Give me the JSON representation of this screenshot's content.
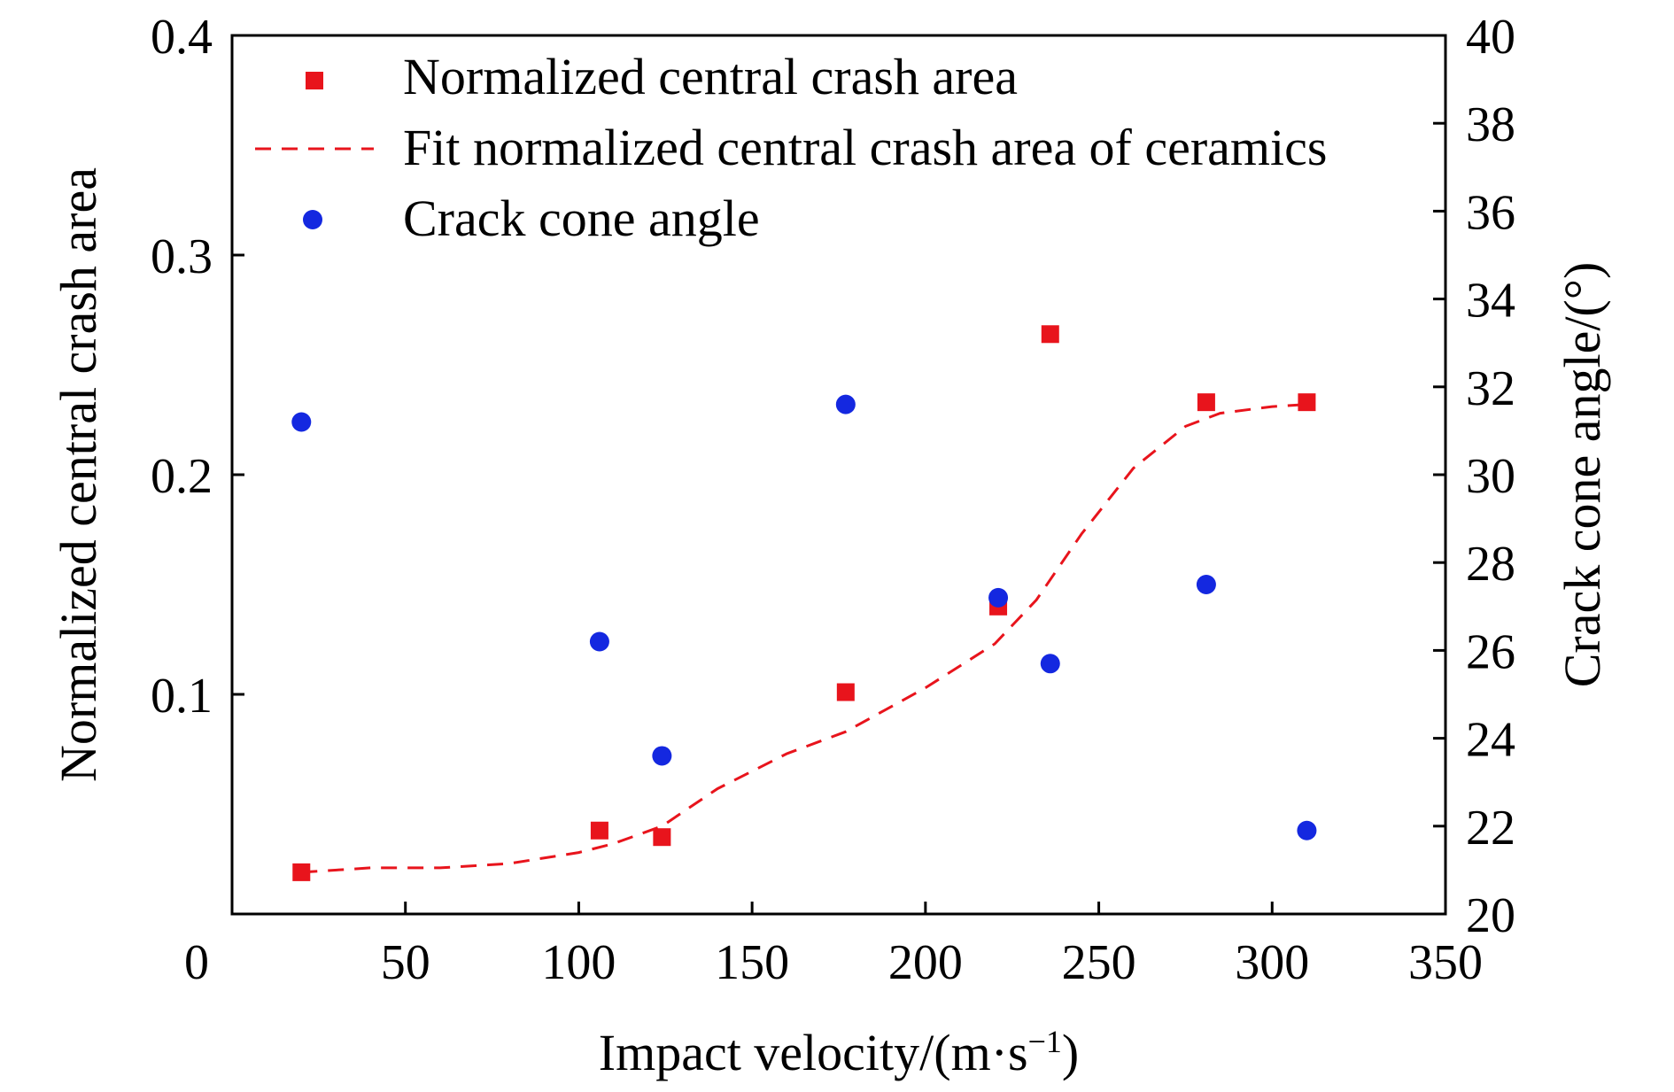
{
  "chart_data": {
    "type": "scatter",
    "xlabel": "Impact velocity/(m·s",
    "xlabel_sup": "−1",
    "xlabel_end": ")",
    "ylabel_left": "Normalized central crash area",
    "ylabel_right": "Crack cone angle/(°)",
    "xlim": [
      0,
      350
    ],
    "ylim_left": [
      0,
      0.4
    ],
    "ylim_right": [
      20,
      40
    ],
    "x_ticks": [
      0,
      50,
      100,
      150,
      200,
      250,
      300,
      350
    ],
    "x_tick_labels": [
      "0",
      "50",
      "100",
      "150",
      "200",
      "250",
      "300",
      "350"
    ],
    "y_left_ticks": [
      0.1,
      0.2,
      0.3,
      0.4
    ],
    "y_left_tick_labels": [
      "0.1",
      "0.2",
      "0.3",
      "0.4"
    ],
    "y_right_ticks": [
      20,
      22,
      24,
      26,
      28,
      30,
      32,
      34,
      36,
      38,
      40
    ],
    "y_right_tick_labels": [
      "20",
      "22",
      "24",
      "26",
      "28",
      "30",
      "32",
      "34",
      "36",
      "38",
      "40"
    ],
    "grid": false,
    "legend_position": "top-left",
    "series": [
      {
        "name": "Normalized central crash area",
        "kind": "scatter",
        "marker": "square",
        "axis": "left",
        "color": "#e8141c",
        "x": [
          20,
          106,
          124,
          177,
          221,
          236,
          281,
          310
        ],
        "y": [
          0.019,
          0.038,
          0.035,
          0.101,
          0.14,
          0.264,
          0.233,
          0.233
        ]
      },
      {
        "name": "Fit normalized central crash area of ceramics",
        "kind": "line",
        "dash": true,
        "axis": "left",
        "color": "#e8141c",
        "x": [
          20,
          40,
          60,
          80,
          100,
          110,
          124,
          140,
          160,
          177,
          200,
          220,
          232,
          245,
          260,
          275,
          285,
          300,
          310
        ],
        "y": [
          0.019,
          0.021,
          0.021,
          0.023,
          0.028,
          0.032,
          0.04,
          0.057,
          0.073,
          0.083,
          0.103,
          0.123,
          0.143,
          0.173,
          0.203,
          0.222,
          0.228,
          0.231,
          0.232
        ]
      },
      {
        "name": "Crack cone angle",
        "kind": "scatter",
        "marker": "circle",
        "axis": "right",
        "color": "#1428e0",
        "x": [
          20,
          106,
          124,
          177,
          221,
          236,
          281,
          310
        ],
        "y": [
          31.2,
          26.2,
          23.6,
          31.6,
          27.2,
          25.7,
          27.5,
          21.9
        ]
      }
    ]
  }
}
